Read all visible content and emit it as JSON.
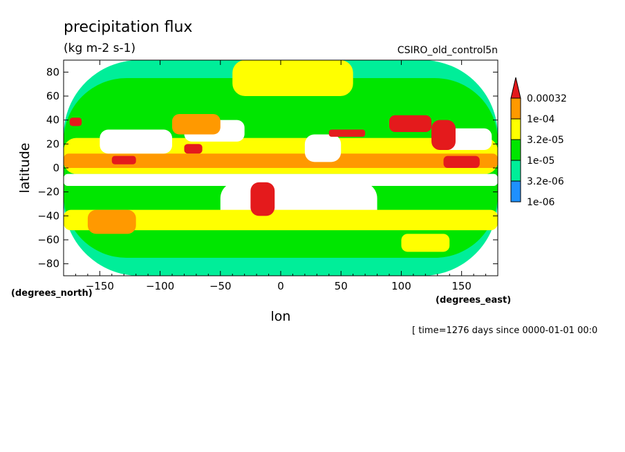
{
  "chart_data": {
    "type": "heatmap",
    "title": "precipitation flux",
    "units": "(kg m-2 s-1)",
    "dataset": "CSIRO_old_control5n",
    "xlabel": "lon",
    "ylabel": "latitude",
    "x_units": "(degrees_east)",
    "y_units": "(degrees_north)",
    "xlim": [
      -180,
      180
    ],
    "ylim": [
      -90,
      90
    ],
    "x_ticks": [
      -150,
      -100,
      -50,
      0,
      50,
      100,
      150
    ],
    "y_ticks": [
      -80,
      -60,
      -40,
      -20,
      0,
      20,
      40,
      60,
      80
    ],
    "time_note": "[ time=1276 days since 0000-01-01 00:0",
    "legend": {
      "labels": [
        "0.00032",
        "1e-04",
        "3.2e-05",
        "1e-05",
        "3.2e-06",
        "1e-06"
      ],
      "colors": [
        "#e41a1c",
        "#ff9900",
        "#ffff00",
        "#00e600",
        "#00ee99",
        "#1e90ff"
      ]
    },
    "color_levels": [
      {
        "min": 1e-06,
        "max": 3.2e-06,
        "color": "#1e90ff"
      },
      {
        "min": 3.2e-06,
        "max": 1e-05,
        "color": "#00ee99"
      },
      {
        "min": 1e-05,
        "max": 3.2e-05,
        "color": "#00e600"
      },
      {
        "min": 3.2e-05,
        "max": 0.0001,
        "color": "#ffff00"
      },
      {
        "min": 0.0001,
        "max": 0.00032,
        "color": "#ff9900"
      },
      {
        "min": 0.00032,
        "max": null,
        "color": "#e41a1c"
      }
    ],
    "features": [
      {
        "lon": [
          -180,
          180
        ],
        "lat": [
          -90,
          90
        ],
        "level": 3.2e-06
      },
      {
        "lon": [
          -180,
          180
        ],
        "lat": [
          -75,
          75
        ],
        "level": 1e-05
      },
      {
        "lon": [
          -180,
          180
        ],
        "lat": [
          -5,
          25
        ],
        "level": 3.2e-05
      },
      {
        "lon": [
          -180,
          180
        ],
        "lat": [
          0,
          12
        ],
        "level": 0.0001
      },
      {
        "lon": [
          -180,
          180
        ],
        "lat": [
          -15,
          -5
        ],
        "level": 0
      },
      {
        "lon": [
          -50,
          80
        ],
        "lat": [
          -50,
          -12
        ],
        "level": 0
      },
      {
        "lon": [
          -150,
          -90
        ],
        "lat": [
          12,
          32
        ],
        "level": 0
      },
      {
        "lon": [
          130,
          175
        ],
        "lat": [
          15,
          33
        ],
        "level": 0
      },
      {
        "lon": [
          -80,
          -30
        ],
        "lat": [
          22,
          40
        ],
        "level": 0
      },
      {
        "lon": [
          20,
          50
        ],
        "lat": [
          5,
          28
        ],
        "level": 0
      },
      {
        "lon": [
          -180,
          180
        ],
        "lat": [
          -52,
          -35
        ],
        "level": 3.2e-05
      },
      {
        "lon": [
          -40,
          60
        ],
        "lat": [
          60,
          90
        ],
        "level": 3.2e-05
      },
      {
        "lon": [
          -90,
          -50
        ],
        "lat": [
          28,
          45
        ],
        "level": 0.0001
      },
      {
        "lon": [
          90,
          125
        ],
        "lat": [
          30,
          44
        ],
        "level": 0.00032
      },
      {
        "lon": [
          125,
          145
        ],
        "lat": [
          15,
          40
        ],
        "level": 0.00032
      },
      {
        "lon": [
          -25,
          -5
        ],
        "lat": [
          -40,
          -12
        ],
        "level": 0.00032
      },
      {
        "lon": [
          -140,
          -120
        ],
        "lat": [
          3,
          10
        ],
        "level": 0.00032
      },
      {
        "lon": [
          40,
          70
        ],
        "lat": [
          26,
          32
        ],
        "level": 0.00032
      },
      {
        "lon": [
          -175,
          -165
        ],
        "lat": [
          35,
          42
        ],
        "level": 0.00032
      },
      {
        "lon": [
          -80,
          -65
        ],
        "lat": [
          12,
          20
        ],
        "level": 0.00032
      },
      {
        "lon": [
          135,
          165
        ],
        "lat": [
          0,
          10
        ],
        "level": 0.00032
      },
      {
        "lon": [
          -160,
          -120
        ],
        "lat": [
          -55,
          -35
        ],
        "level": 0.0001
      },
      {
        "lon": [
          100,
          140
        ],
        "lat": [
          -70,
          -55
        ],
        "level": 3.2e-05
      }
    ]
  }
}
